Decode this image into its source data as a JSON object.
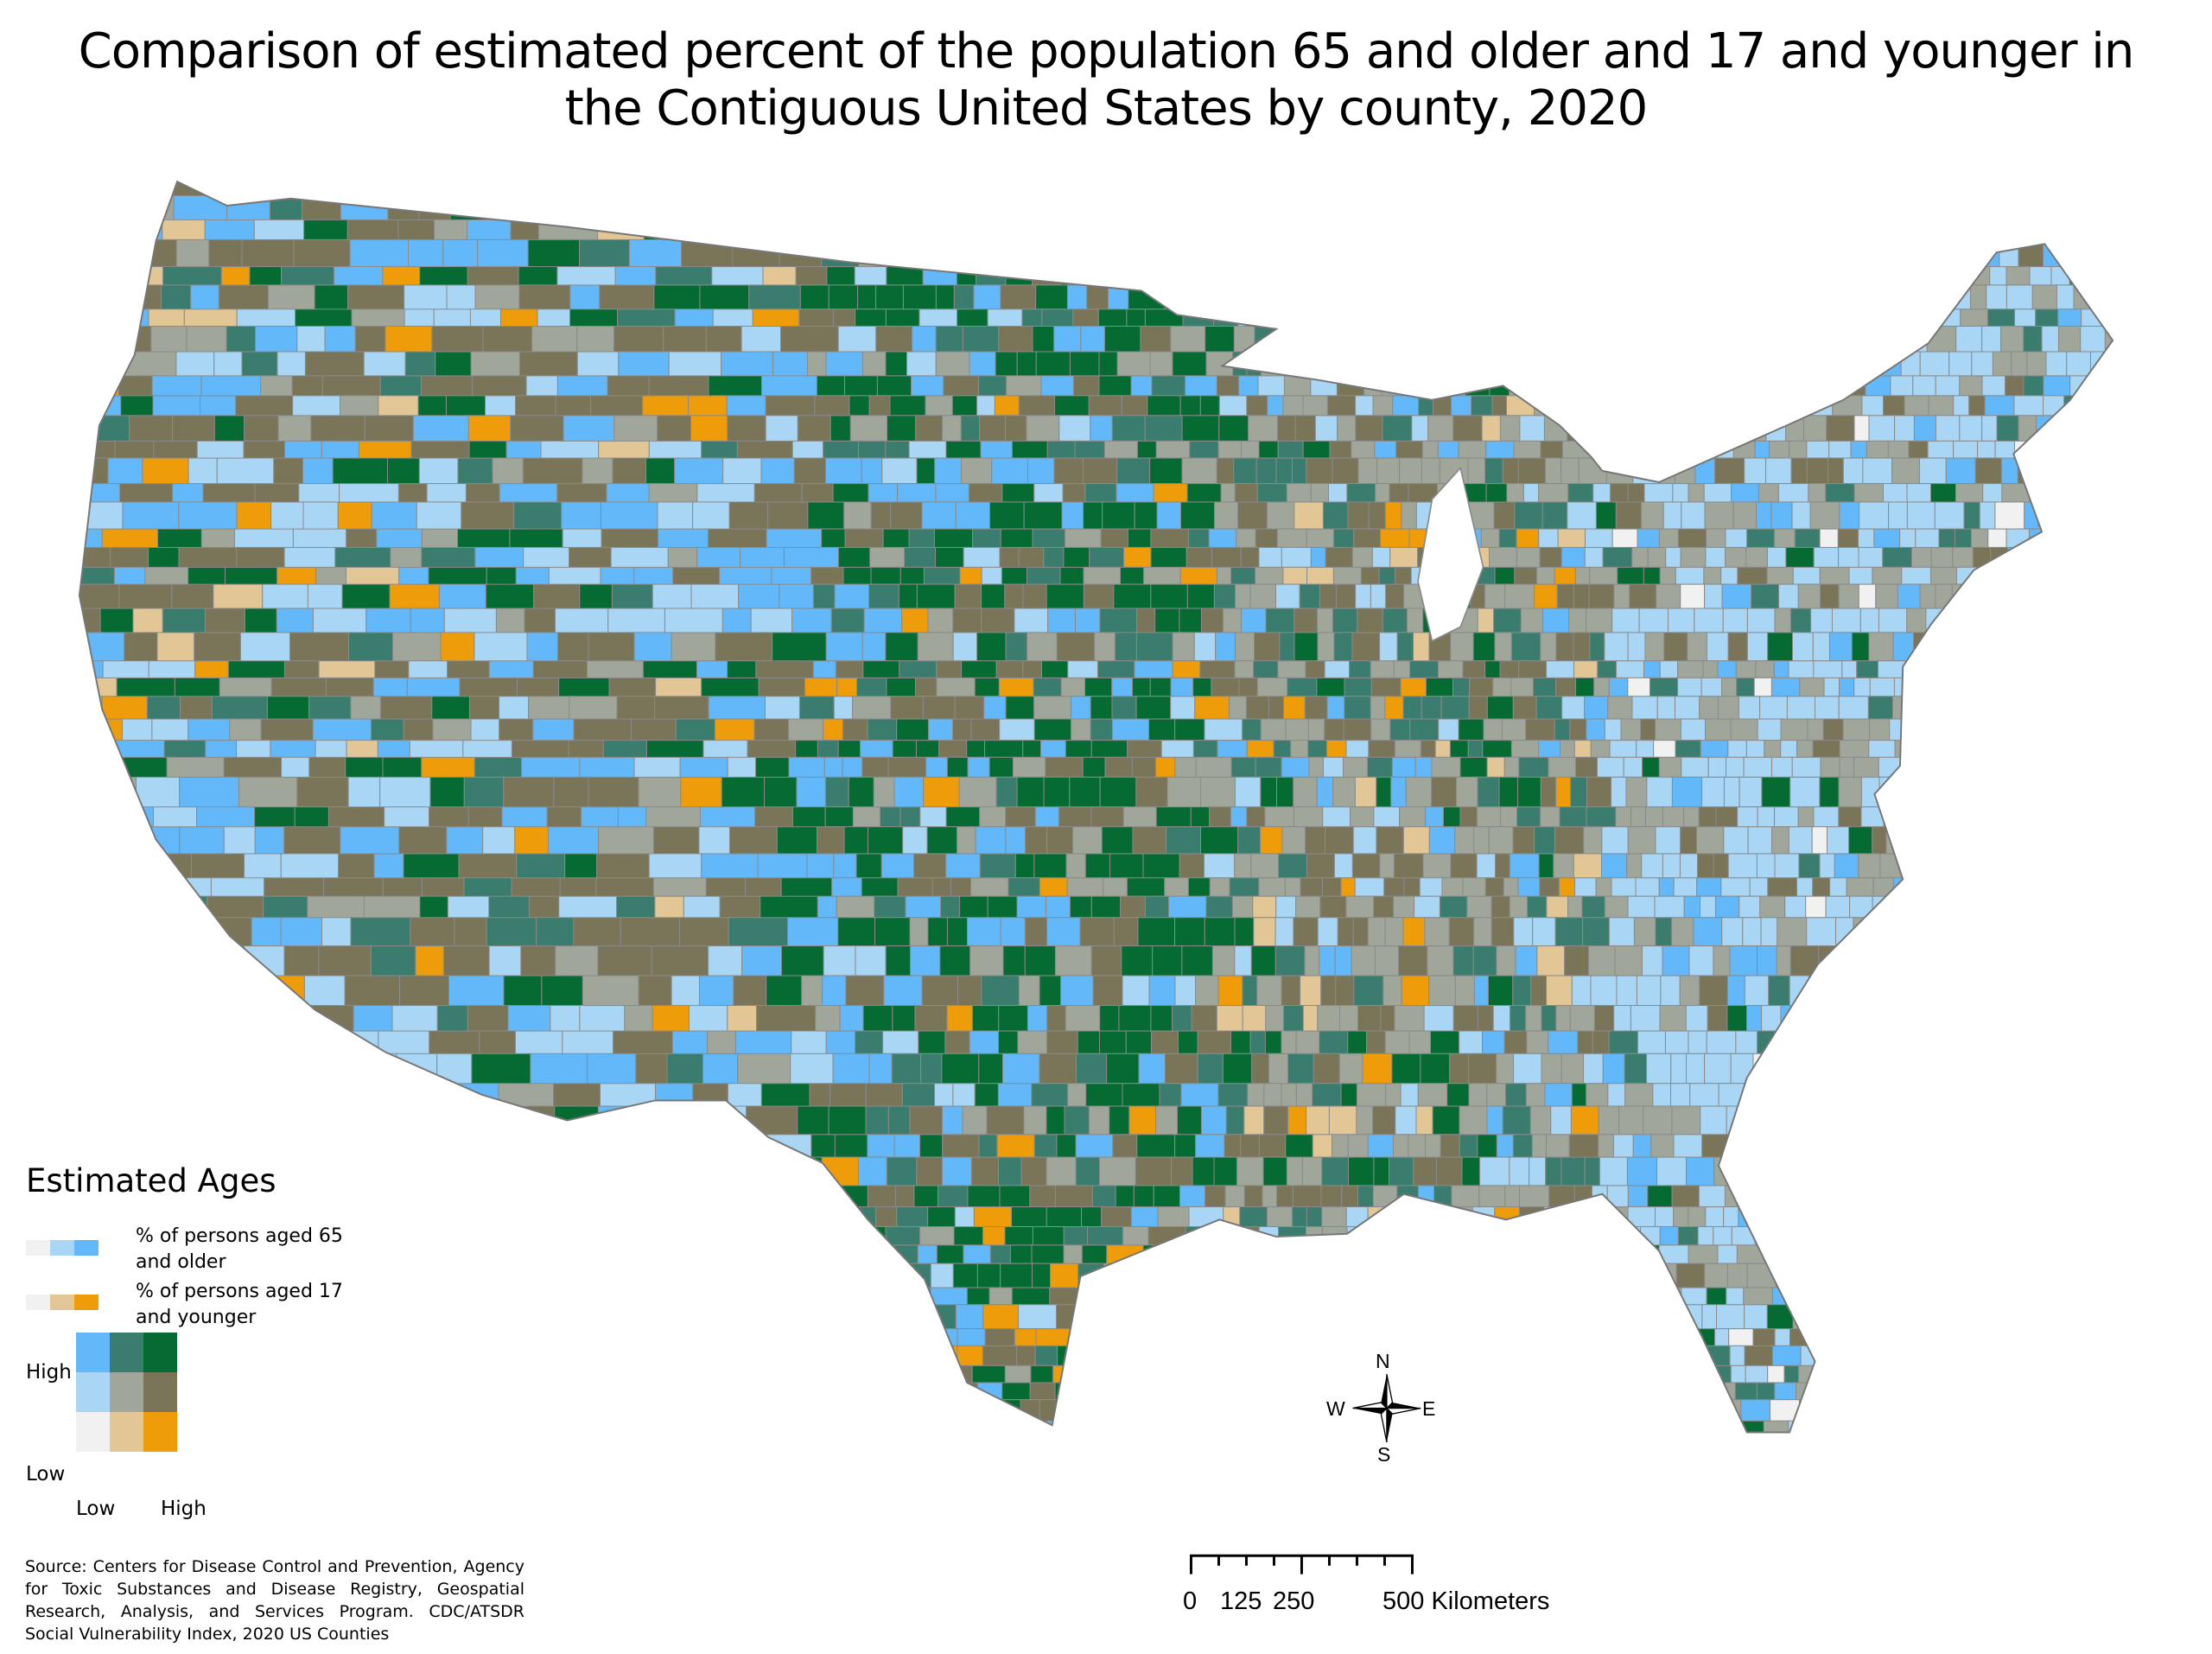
{
  "title": {
    "line1": "Comparison of estimated percent of the population 65 and older and 17 and younger in",
    "line2": "the Contiguous United States by county, 2020"
  },
  "legend": {
    "title": "Estimated Ages",
    "older_label": "% of persons aged 65 and older",
    "younger_label": "% of persons aged 17 and younger",
    "older_ramp": [
      "#F1F1F1",
      "#A9D6F5",
      "#62B8F8"
    ],
    "younger_ramp": [
      "#F1F1F1",
      "#E3C696",
      "#EE9C0A"
    ],
    "matrix": [
      [
        "#62B8F8",
        "#3A7D6E",
        "#056B33"
      ],
      [
        "#A9D6F5",
        "#A0A69A",
        "#7A7558"
      ],
      [
        "#F1F1F1",
        "#E3C696",
        "#EE9C0A"
      ]
    ],
    "y_high": "High",
    "y_low": "Low",
    "x_low": "Low",
    "x_high": "High"
  },
  "source": "Source: Centers for Disease Control and Prevention, Agency for Toxic Substances and Disease Registry, Geospatial Research, Analysis, and Services Program. CDC/ATSDR Social Vulnerability Index, 2020 US Counties",
  "compass": {
    "n": "N",
    "s": "S",
    "e": "E",
    "w": "W"
  },
  "scale_bar": {
    "labels": [
      "0",
      "125",
      "250",
      "500 Kilometers"
    ]
  }
}
